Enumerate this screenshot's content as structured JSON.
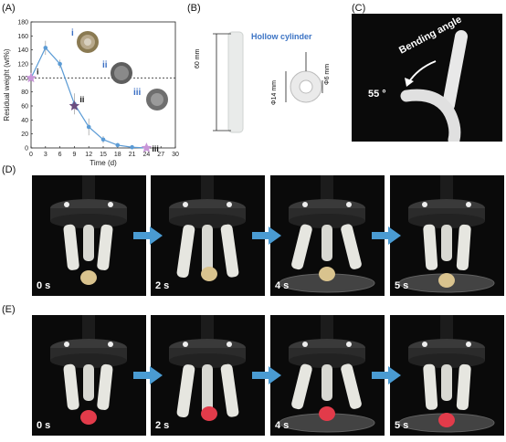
{
  "panel_labels": {
    "a": "(A)",
    "b": "(B)",
    "c": "(C)",
    "d": "(D)",
    "e": "(E)"
  },
  "chart_data": {
    "type": "line",
    "xlabel": "Time (d)",
    "ylabel": "Residual weight (wt%)",
    "x_ticks": [
      "0",
      "3",
      "6",
      "9",
      "12",
      "15",
      "18",
      "21",
      "24",
      "27",
      "30"
    ],
    "y_ticks": [
      "0",
      "20",
      "40",
      "60",
      "80",
      "100",
      "120",
      "140",
      "160",
      "180"
    ],
    "xlim": [
      0,
      30
    ],
    "ylim": [
      0,
      180
    ],
    "reference_line_y": 100,
    "series": [
      {
        "x": [
          0,
          3,
          6,
          9,
          12,
          15,
          18,
          21,
          24
        ],
        "y": [
          100,
          143,
          120,
          63,
          30,
          12,
          4,
          1,
          0
        ],
        "err": [
          0,
          10,
          6,
          15,
          12,
          5,
          3,
          1,
          0
        ],
        "color": "#5b9bd5"
      }
    ],
    "stars": [
      {
        "x": 0,
        "y": 100,
        "label": "i"
      },
      {
        "x": 9,
        "y": 60,
        "label": "ii"
      },
      {
        "x": 24,
        "y": 0,
        "label": "iii"
      }
    ],
    "inset_labels": [
      "i",
      "ii",
      "iii"
    ]
  },
  "panel_b": {
    "hollow_label": "Hollow cylinder",
    "length": "60 mm",
    "outer_diameter": "Φ14 mm",
    "inner_diameter": "Φ6 mm"
  },
  "panel_c": {
    "bending_label": "Bending angle",
    "angle": "55 °"
  },
  "row_d_times": [
    "0 s",
    "2 s",
    "4 s",
    "5 s"
  ],
  "row_e_times": [
    "0 s",
    "2 s",
    "4 s",
    "5 s"
  ]
}
